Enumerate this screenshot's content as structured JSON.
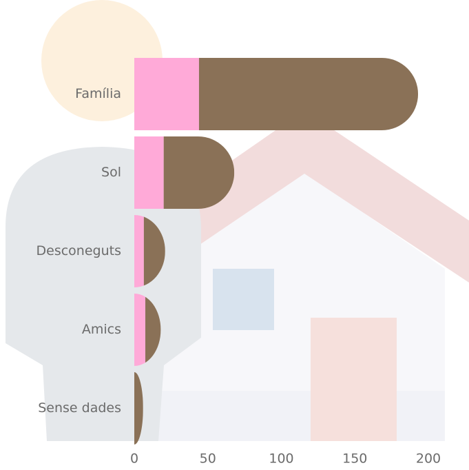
{
  "chart_data": {
    "type": "stacked-hbar",
    "categories": [
      "Família",
      "Sol",
      "Desconeguts",
      "Amics",
      "Sense dades"
    ],
    "series": [
      {
        "color": "#ffaad8",
        "values": [
          44,
          20,
          6.5,
          7.5,
          0
        ]
      },
      {
        "color": "#8a7157",
        "values": [
          149,
          48,
          14.5,
          10.5,
          6
        ]
      }
    ],
    "xlim": [
      0,
      200
    ],
    "xticks": [
      0,
      50,
      100,
      150,
      200
    ],
    "grid": false
  }
}
